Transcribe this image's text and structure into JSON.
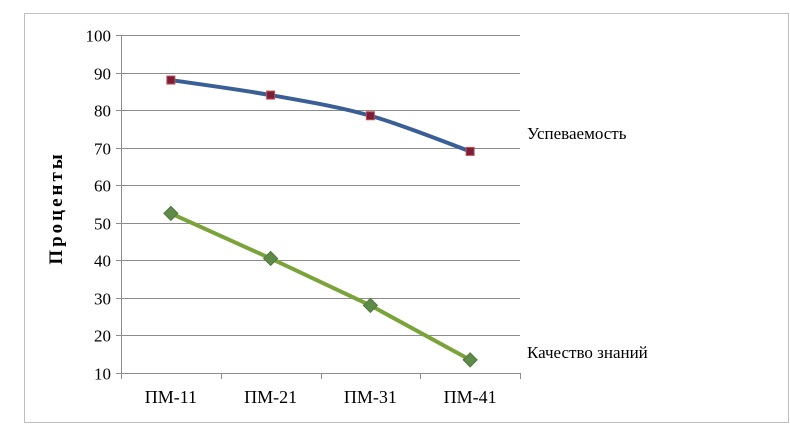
{
  "chart_data": {
    "type": "line",
    "categories": [
      "ПМ-11",
      "ПМ-21",
      "ПМ-31",
      "ПМ-41"
    ],
    "ylabel": "Проценты",
    "ylim": [
      10,
      100
    ],
    "yticks": [
      10,
      20,
      30,
      40,
      50,
      60,
      70,
      80,
      90,
      100
    ],
    "grid": true,
    "series": [
      {
        "name": "Успеваемость",
        "values": [
          88,
          84,
          78.5,
          69
        ],
        "color": "#3a5f96",
        "marker": "square",
        "marker_color": "#7a1f3a"
      },
      {
        "name": "Качество знаний",
        "values": [
          52.5,
          40.5,
          28,
          13.5
        ],
        "color": "#7aa33a",
        "marker": "diamond",
        "marker_color": "#5e8a4a"
      }
    ]
  }
}
